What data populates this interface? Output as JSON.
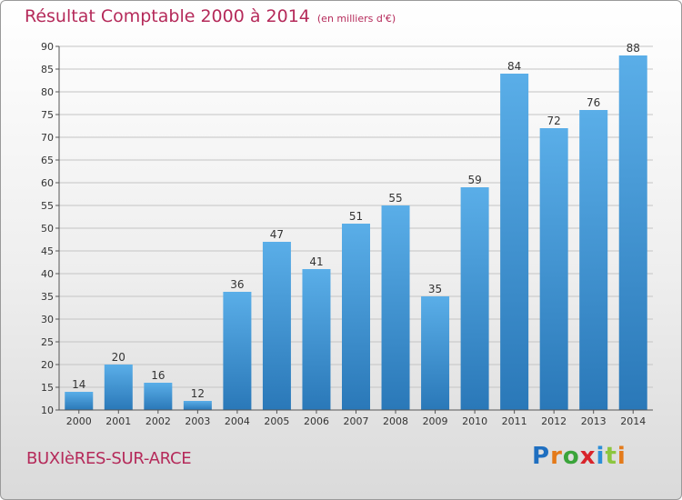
{
  "header": {
    "title": "Résultat Comptable 2000 à 2014",
    "subtitle": "(en milliers d'€)"
  },
  "footer": {
    "commune": "BUXIèRES-SUR-ARCE",
    "logo": {
      "letters": [
        {
          "char": "P",
          "color": "#1f6fc0"
        },
        {
          "char": "r",
          "color": "#e47a1a"
        },
        {
          "char": "o",
          "color": "#3aa43a"
        },
        {
          "char": "x",
          "color": "#d8242b"
        },
        {
          "char": "i",
          "color": "#2b8ed8"
        },
        {
          "char": "t",
          "color": "#8cc63f"
        },
        {
          "char": "i",
          "color": "#e47a1a"
        }
      ]
    }
  },
  "chart_data": {
    "type": "bar",
    "categories": [
      "2000",
      "2001",
      "2002",
      "2003",
      "2004",
      "2005",
      "2006",
      "2007",
      "2008",
      "2009",
      "2010",
      "2011",
      "2012",
      "2013",
      "2014"
    ],
    "values": [
      14,
      20,
      16,
      12,
      36,
      47,
      41,
      51,
      55,
      35,
      59,
      84,
      72,
      76,
      88
    ],
    "ylim": [
      10,
      90
    ],
    "yticks": [
      10,
      15,
      20,
      25,
      30,
      35,
      40,
      45,
      50,
      55,
      60,
      65,
      70,
      75,
      80,
      85,
      90
    ],
    "grid": true,
    "bar_color_top": "#5aaee8",
    "bar_color_bottom": "#2a78b8"
  }
}
